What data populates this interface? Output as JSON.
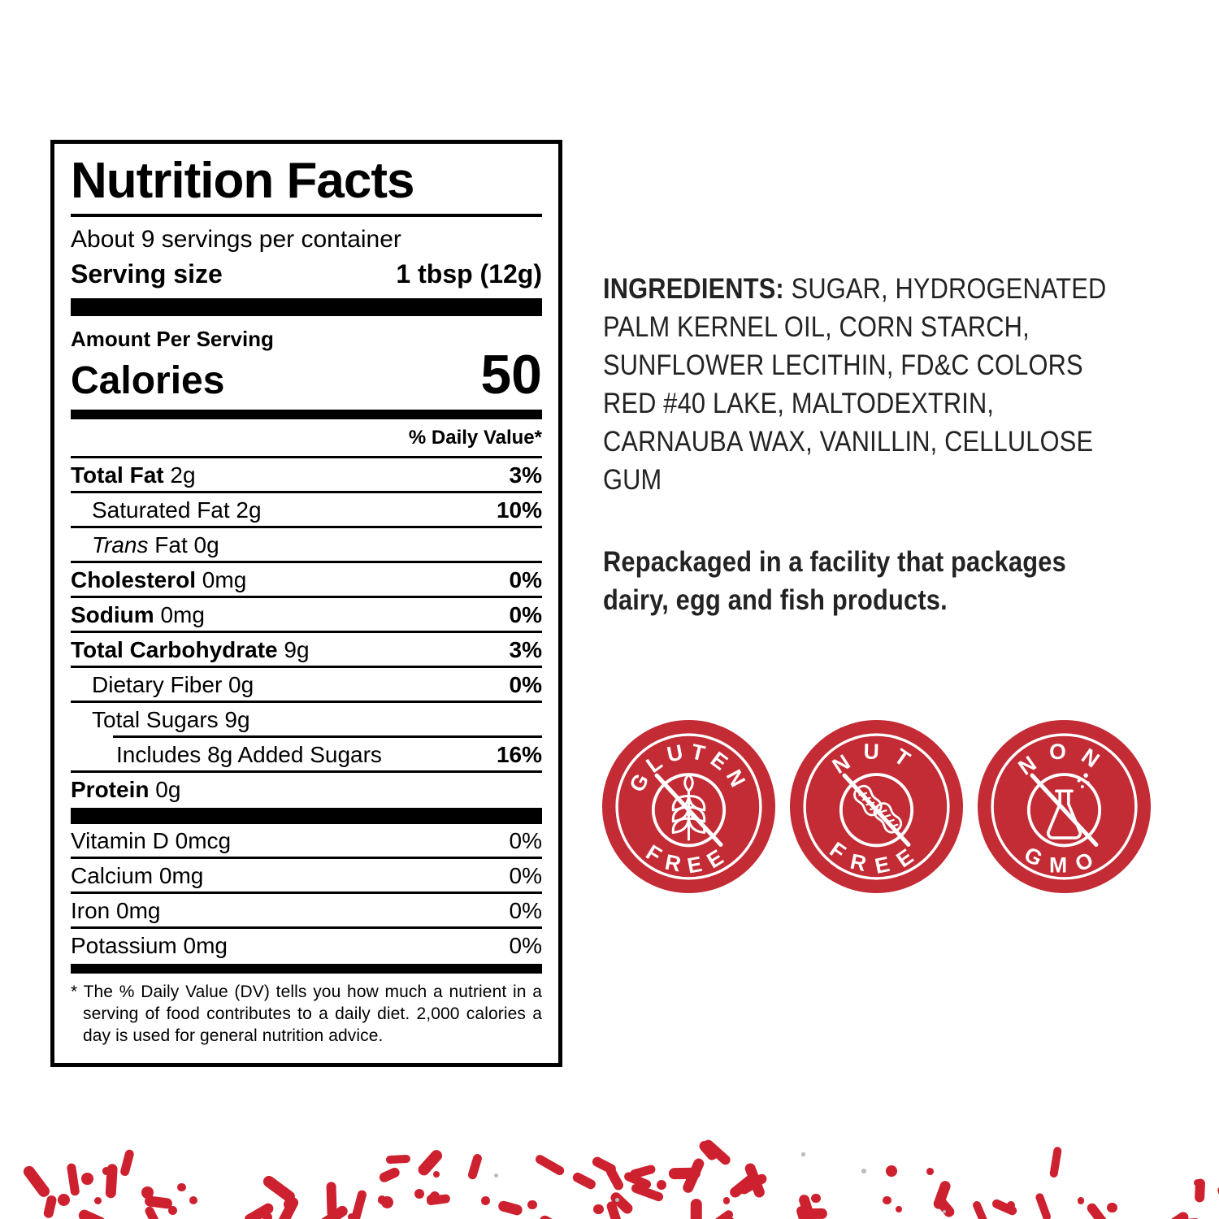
{
  "nutrition_label": {
    "title": "Nutrition Facts",
    "servings_per_container": "About 9 servings per container",
    "serving_size_label": "Serving size",
    "serving_size_value": "1 tbsp (12g)",
    "amount_per_serving": "Amount Per Serving",
    "calories_label": "Calories",
    "calories_value": "50",
    "daily_value_header": "% Daily Value*",
    "rows": [
      {
        "name": "Total Fat",
        "amount": "2g",
        "name_style": "bold",
        "pct": "3%",
        "indent": 0,
        "inset": false
      },
      {
        "name": "Saturated Fat",
        "amount": "2g",
        "name_style": "regular",
        "pct": "10%",
        "indent": 1,
        "inset": false
      },
      {
        "name": "Trans",
        "amount": "Fat 0g",
        "name_style": "italic",
        "pct": "",
        "indent": 1,
        "inset": false
      },
      {
        "name": "Cholesterol",
        "amount": "0mg",
        "name_style": "bold",
        "pct": "0%",
        "indent": 0,
        "inset": false
      },
      {
        "name": "Sodium",
        "amount": "0mg",
        "name_style": "bold",
        "pct": "0%",
        "indent": 0,
        "inset": false
      },
      {
        "name": "Total Carbohydrate",
        "amount": "9g",
        "name_style": "bold",
        "pct": "3%",
        "indent": 0,
        "inset": false
      },
      {
        "name": "Dietary Fiber",
        "amount": "0g",
        "name_style": "regular",
        "pct": "0%",
        "indent": 1,
        "inset": false
      },
      {
        "name": "Total Sugars",
        "amount": "9g",
        "name_style": "regular",
        "pct": "",
        "indent": 1,
        "inset": false
      },
      {
        "name": "Includes 8g Added Sugars",
        "amount": "",
        "name_style": "regular",
        "pct": "16%",
        "indent": 2,
        "inset": true
      },
      {
        "name": "Protein",
        "amount": "0g",
        "name_style": "bold",
        "pct": "",
        "indent": 0,
        "inset": false
      }
    ],
    "vitamin_rows": [
      {
        "name": "Vitamin D 0mcg",
        "pct": "0%"
      },
      {
        "name": "Calcium 0mg",
        "pct": "0%"
      },
      {
        "name": "Iron 0mg",
        "pct": "0%"
      },
      {
        "name": "Potassium 0mg",
        "pct": "0%"
      }
    ],
    "footnote": "* The % Daily Value (DV) tells you how much a nutrient in a serving of food contributes to a daily diet. 2,000 calories a day is used for general nutrition advice."
  },
  "ingredients": {
    "label": "INGREDIENTS:",
    "text": "SUGAR, HYDROGENATED\nPALM KERNEL OIL, CORN STARCH,\nSUNFLOWER LECITHIN, FD&C COLORS\nRED #40 LAKE, MALTODEXTRIN,\nCARNAUBA WAX, VANILLIN, CELLULOSE\nGUM"
  },
  "repackaged_notice": "Repackaged in a facility that packages\ndairy, egg and fish products.",
  "badges": [
    {
      "top": "GLUTEN",
      "bottom": "FREE",
      "icon": "wheat-crossed"
    },
    {
      "top": "NUT",
      "bottom": "FREE",
      "icon": "peanut-crossed"
    },
    {
      "top": "NON",
      "bottom": "GMO",
      "icon": "flask-crossed"
    }
  ],
  "colors": {
    "badge_red": "#c32b35",
    "sprinkle_red": "#cd2130",
    "sprinkle_gray": "#b9bcc0",
    "text_black": "#000000"
  },
  "decor": {
    "sprinkle_count": 94
  }
}
